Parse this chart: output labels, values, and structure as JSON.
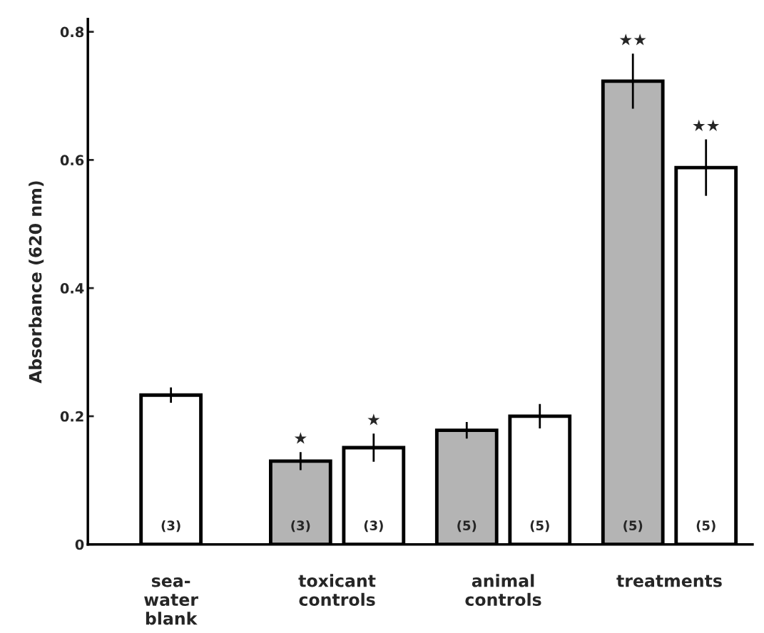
{
  "chart_data": {
    "type": "bar",
    "ylabel": "Absorbance (620 nm)",
    "categories": [
      "sea-\nwater\nblank",
      "toxicant\ncontrols",
      "animal\ncontrols",
      "treatments"
    ],
    "series": [
      {
        "color": "#b4b4b4",
        "values": [
          null,
          0.13,
          0.178,
          0.723
        ],
        "errors": [
          null,
          0.014,
          0.013,
          0.043
        ]
      },
      {
        "color": "#ffffff",
        "values": [
          0.233,
          0.151,
          0.2,
          0.588
        ],
        "errors": [
          0.012,
          0.022,
          0.019,
          0.044
        ]
      }
    ],
    "ylim": [
      0,
      0.82
    ],
    "yticks": [
      0,
      {
        "value": 0.2,
        "label": "0.2"
      },
      {
        "value": 0.4,
        "label": "0.4"
      },
      {
        "value": 0.6,
        "label": "0.6"
      },
      {
        "value": 0.8,
        "label": "0.8"
      }
    ],
    "annotations": [
      "(3)",
      "(3)",
      "(3)",
      "(5)",
      "(5)",
      "(5)",
      "(5)",
      "★",
      "★",
      "★★",
      "★★"
    ],
    "grid": false,
    "legend": false
  }
}
